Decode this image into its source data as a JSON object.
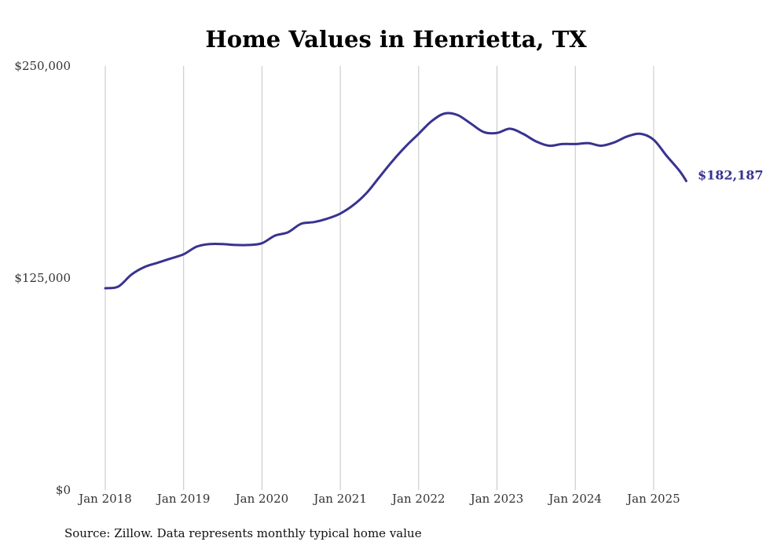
{
  "chart_data": {
    "type": "line",
    "title": "Home Values in Henrietta, TX",
    "xlabel": "",
    "ylabel": "",
    "x_ticks": [
      "Jan 2018",
      "Jan 2019",
      "Jan 2020",
      "Jan 2021",
      "Jan 2022",
      "Jan 2023",
      "Jan 2024",
      "Jan 2025"
    ],
    "y_ticks": [
      "$250,000",
      "$125,000",
      "$0"
    ],
    "y_tick_values": [
      250000,
      125000,
      0
    ],
    "ylim": [
      0,
      250000
    ],
    "grid": "vertical",
    "line_color": "#38338f",
    "end_label": "$182,187",
    "source": "Source: Zillow. Data represents monthly typical home value",
    "series": [
      {
        "x": [
          "2018-01",
          "2018-03",
          "2018-05",
          "2018-07",
          "2018-09",
          "2018-11",
          "2019-01",
          "2019-03",
          "2019-05",
          "2019-07",
          "2019-09",
          "2019-11",
          "2020-01",
          "2020-03",
          "2020-05",
          "2020-07",
          "2020-09",
          "2020-11",
          "2021-01",
          "2021-03",
          "2021-05",
          "2021-07",
          "2021-09",
          "2021-11",
          "2022-01",
          "2022-03",
          "2022-05",
          "2022-07",
          "2022-09",
          "2022-11",
          "2023-01",
          "2023-03",
          "2023-05",
          "2023-07",
          "2023-09",
          "2023-11",
          "2024-01",
          "2024-03",
          "2024-05",
          "2024-07",
          "2024-09",
          "2024-11",
          "2025-01",
          "2025-03",
          "2025-05",
          "2025-06"
        ],
        "values": [
          119000,
          120000,
          127000,
          131500,
          134000,
          136500,
          139000,
          143500,
          145000,
          145000,
          144500,
          144500,
          145500,
          150000,
          152000,
          157000,
          158000,
          160000,
          163000,
          168000,
          175000,
          184500,
          194000,
          202500,
          210000,
          217500,
          222000,
          221000,
          216000,
          211000,
          210500,
          213000,
          210000,
          205500,
          203000,
          204000,
          204000,
          204500,
          203000,
          205000,
          208500,
          210000,
          206500,
          197000,
          188000,
          182187
        ]
      }
    ]
  }
}
